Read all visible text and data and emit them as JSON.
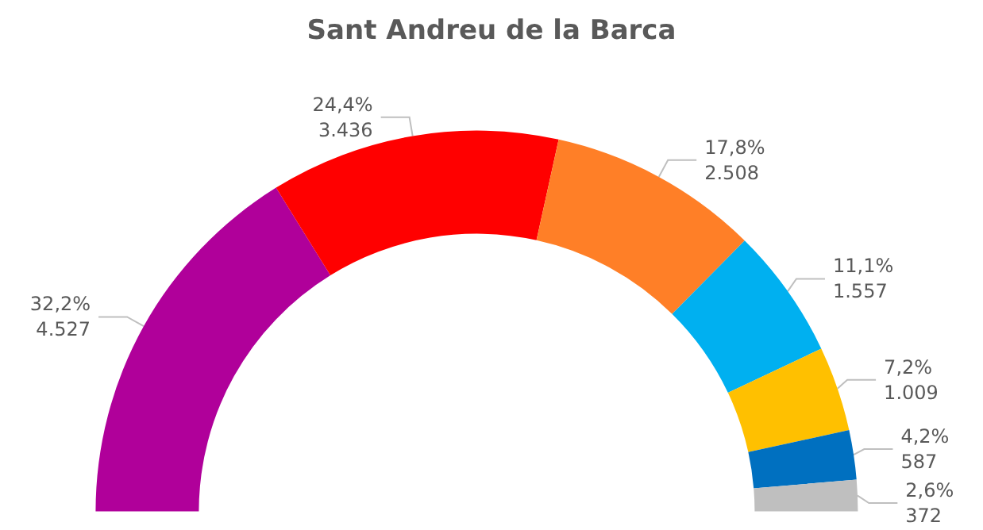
{
  "chart_data": {
    "type": "donut",
    "title": "Sant Andreu de la Barca",
    "categories": [
      null,
      null,
      null,
      null,
      null,
      null,
      null
    ],
    "values": [
      4527,
      3436,
      2508,
      1557,
      1009,
      587,
      372
    ],
    "colors": [
      "#b0009a",
      "#ff0000",
      "#ff7f27",
      "#00b0f0",
      "#ffc000",
      "#0070c0",
      "#bfbfbf"
    ],
    "value_labels": [
      "32,2%\n4.527",
      "24,4%\n3.436",
      "17,8%\n2.508",
      "11,1%\n1.557",
      "7,2%\n1.009",
      "4,2%\n587",
      "2,6%\n372"
    ]
  }
}
